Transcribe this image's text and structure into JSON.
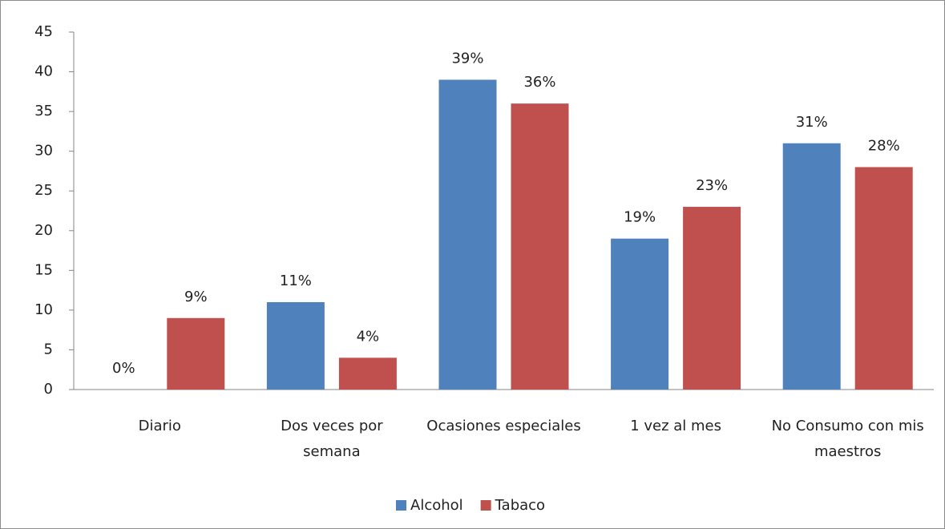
{
  "chart_data": {
    "type": "bar",
    "categories": [
      "Diario",
      "Dos veces por semana",
      "Ocasiones especiales",
      "1 vez al mes",
      "No Consumo con mis maestros"
    ],
    "series": [
      {
        "name": "Alcohol",
        "color": "#4f81bd",
        "values": [
          0,
          11,
          39,
          19,
          31
        ],
        "value_labels": [
          "0%",
          "11%",
          "39%",
          "19%",
          "31%"
        ]
      },
      {
        "name": "Tabaco",
        "color": "#c0504d",
        "values": [
          9,
          4,
          36,
          23,
          28
        ],
        "value_labels": [
          "9%",
          "4%",
          "36%",
          "23%",
          "28%"
        ]
      }
    ],
    "ylim": [
      0,
      45
    ],
    "yticks": [
      0,
      5,
      10,
      15,
      20,
      25,
      30,
      35,
      40,
      45
    ],
    "grid": false,
    "legend": "bottom"
  }
}
